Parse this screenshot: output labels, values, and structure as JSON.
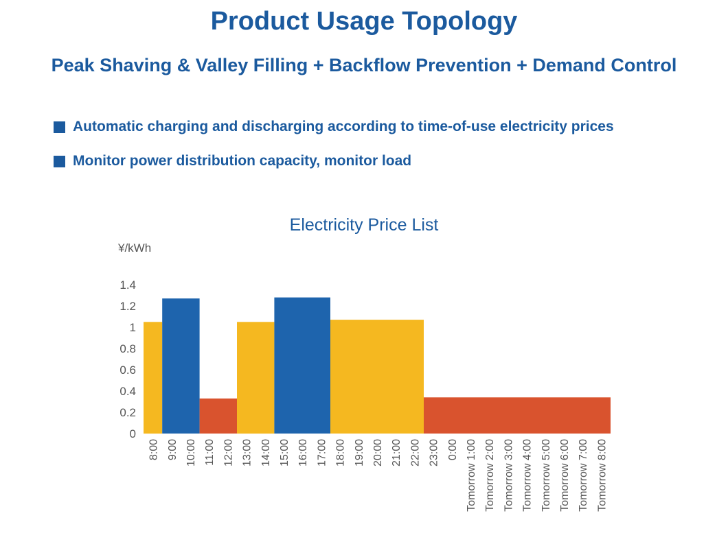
{
  "header": {
    "title": "Product Usage Topology",
    "subtitle": "Peak Shaving & Valley Filling + Backflow Prevention + Demand Control"
  },
  "bullets": [
    "Automatic charging and discharging according to time-of-use electricity prices",
    "Monitor power distribution capacity, monitor load"
  ],
  "chart_data": {
    "type": "bar",
    "title": "Electricity Price List",
    "ylabel": "¥/kWh",
    "xlabel": "",
    "ylim": [
      0,
      1.4
    ],
    "y_ticks": [
      "0",
      "0.2",
      "0.4",
      "0.6",
      "0.8",
      "1",
      "1.2",
      "1.4"
    ],
    "grid": false,
    "legend": "none",
    "colors": {
      "flat": "#f5b820",
      "peak": "#1e64ad",
      "valley": "#d9532e"
    },
    "categories": [
      "8:00",
      "9:00",
      "10:00",
      "11:00",
      "12:00",
      "13:00",
      "14:00",
      "15:00",
      "16:00",
      "17:00",
      "18:00",
      "19:00",
      "20:00",
      "21:00",
      "22:00",
      "23:00",
      "0:00",
      "Tomorrow 1:00",
      "Tomorrow 2:00",
      "Tomorrow 3:00",
      "Tomorrow 4:00",
      "Tomorrow 5:00",
      "Tomorrow 6:00",
      "Tomorrow 7:00",
      "Tomorrow 8:00"
    ],
    "segments": [
      {
        "start": 0,
        "end": 1,
        "value": 1.05,
        "level": "flat"
      },
      {
        "start": 1,
        "end": 3,
        "value": 1.27,
        "level": "peak"
      },
      {
        "start": 3,
        "end": 5,
        "value": 0.33,
        "level": "valley"
      },
      {
        "start": 5,
        "end": 7,
        "value": 1.05,
        "level": "flat"
      },
      {
        "start": 7,
        "end": 10,
        "value": 1.28,
        "level": "peak"
      },
      {
        "start": 10,
        "end": 15,
        "value": 1.07,
        "level": "flat"
      },
      {
        "start": 15,
        "end": 25,
        "value": 0.34,
        "level": "valley"
      }
    ]
  }
}
